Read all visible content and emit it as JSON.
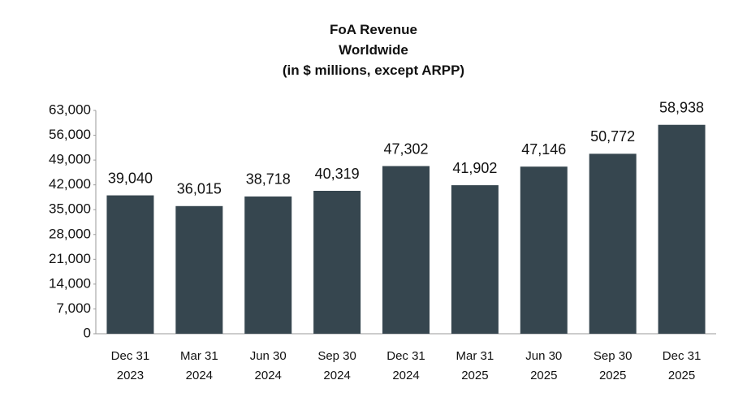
{
  "chart_data": {
    "type": "bar",
    "title": "FoA Revenue\nWorldwide\n(in $ millions, except ARPP)",
    "categories": [
      "Dec 31\n2023",
      "Mar 31\n2024",
      "Jun 30\n2024",
      "Sep 30\n2024",
      "Dec 31\n2024",
      "Mar 31\n2025",
      "Jun 30\n2025",
      "Sep 30\n2025",
      "Dec 31\n2025"
    ],
    "values": [
      39040,
      36015,
      38718,
      40319,
      47302,
      41902,
      47146,
      50772,
      58938
    ],
    "value_labels": [
      "39,040",
      "36,015",
      "38,718",
      "40,319",
      "47,302",
      "41,902",
      "47,146",
      "50,772",
      "58,938"
    ],
    "color": "#36464f",
    "ylim": [
      0,
      63000
    ],
    "yticks": [
      0,
      {
        "value": 7000,
        "label": "7,000"
      },
      {
        "value": 14000,
        "label": "14,000"
      },
      {
        "value": 21000,
        "label": "21,000"
      },
      {
        "value": 28000,
        "label": "28,000"
      },
      {
        "value": 35000,
        "label": "35,000"
      },
      {
        "value": 42000,
        "label": "42,000"
      },
      {
        "value": 49000,
        "label": "49,000"
      },
      {
        "value": 56000,
        "label": "56,000"
      },
      {
        "value": 63000,
        "label": "63,000"
      }
    ],
    "grid": false
  }
}
